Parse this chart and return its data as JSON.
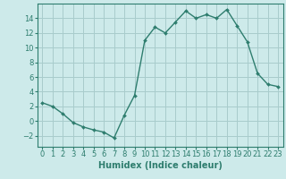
{
  "x": [
    0,
    1,
    2,
    3,
    4,
    5,
    6,
    7,
    8,
    9,
    10,
    11,
    12,
    13,
    14,
    15,
    16,
    17,
    18,
    19,
    20,
    21,
    22,
    23
  ],
  "y": [
    2.5,
    2.0,
    1.0,
    -0.2,
    -0.8,
    -1.2,
    -1.5,
    -2.3,
    0.8,
    3.5,
    11.0,
    12.8,
    12.0,
    13.5,
    15.0,
    14.0,
    14.5,
    14.0,
    15.2,
    13.0,
    10.8,
    6.5,
    5.0,
    4.7
  ],
  "line_color": "#2e7d6e",
  "marker": "D",
  "marker_size": 2.0,
  "bg_color": "#cdeaea",
  "grid_color": "#a8cccc",
  "xlabel": "Humidex (Indice chaleur)",
  "xlim": [
    -0.5,
    23.5
  ],
  "ylim": [
    -3.5,
    16.0
  ],
  "yticks": [
    -2,
    0,
    2,
    4,
    6,
    8,
    10,
    12,
    14
  ],
  "xlabel_fontsize": 7,
  "tick_fontsize": 6,
  "line_width": 1.0
}
